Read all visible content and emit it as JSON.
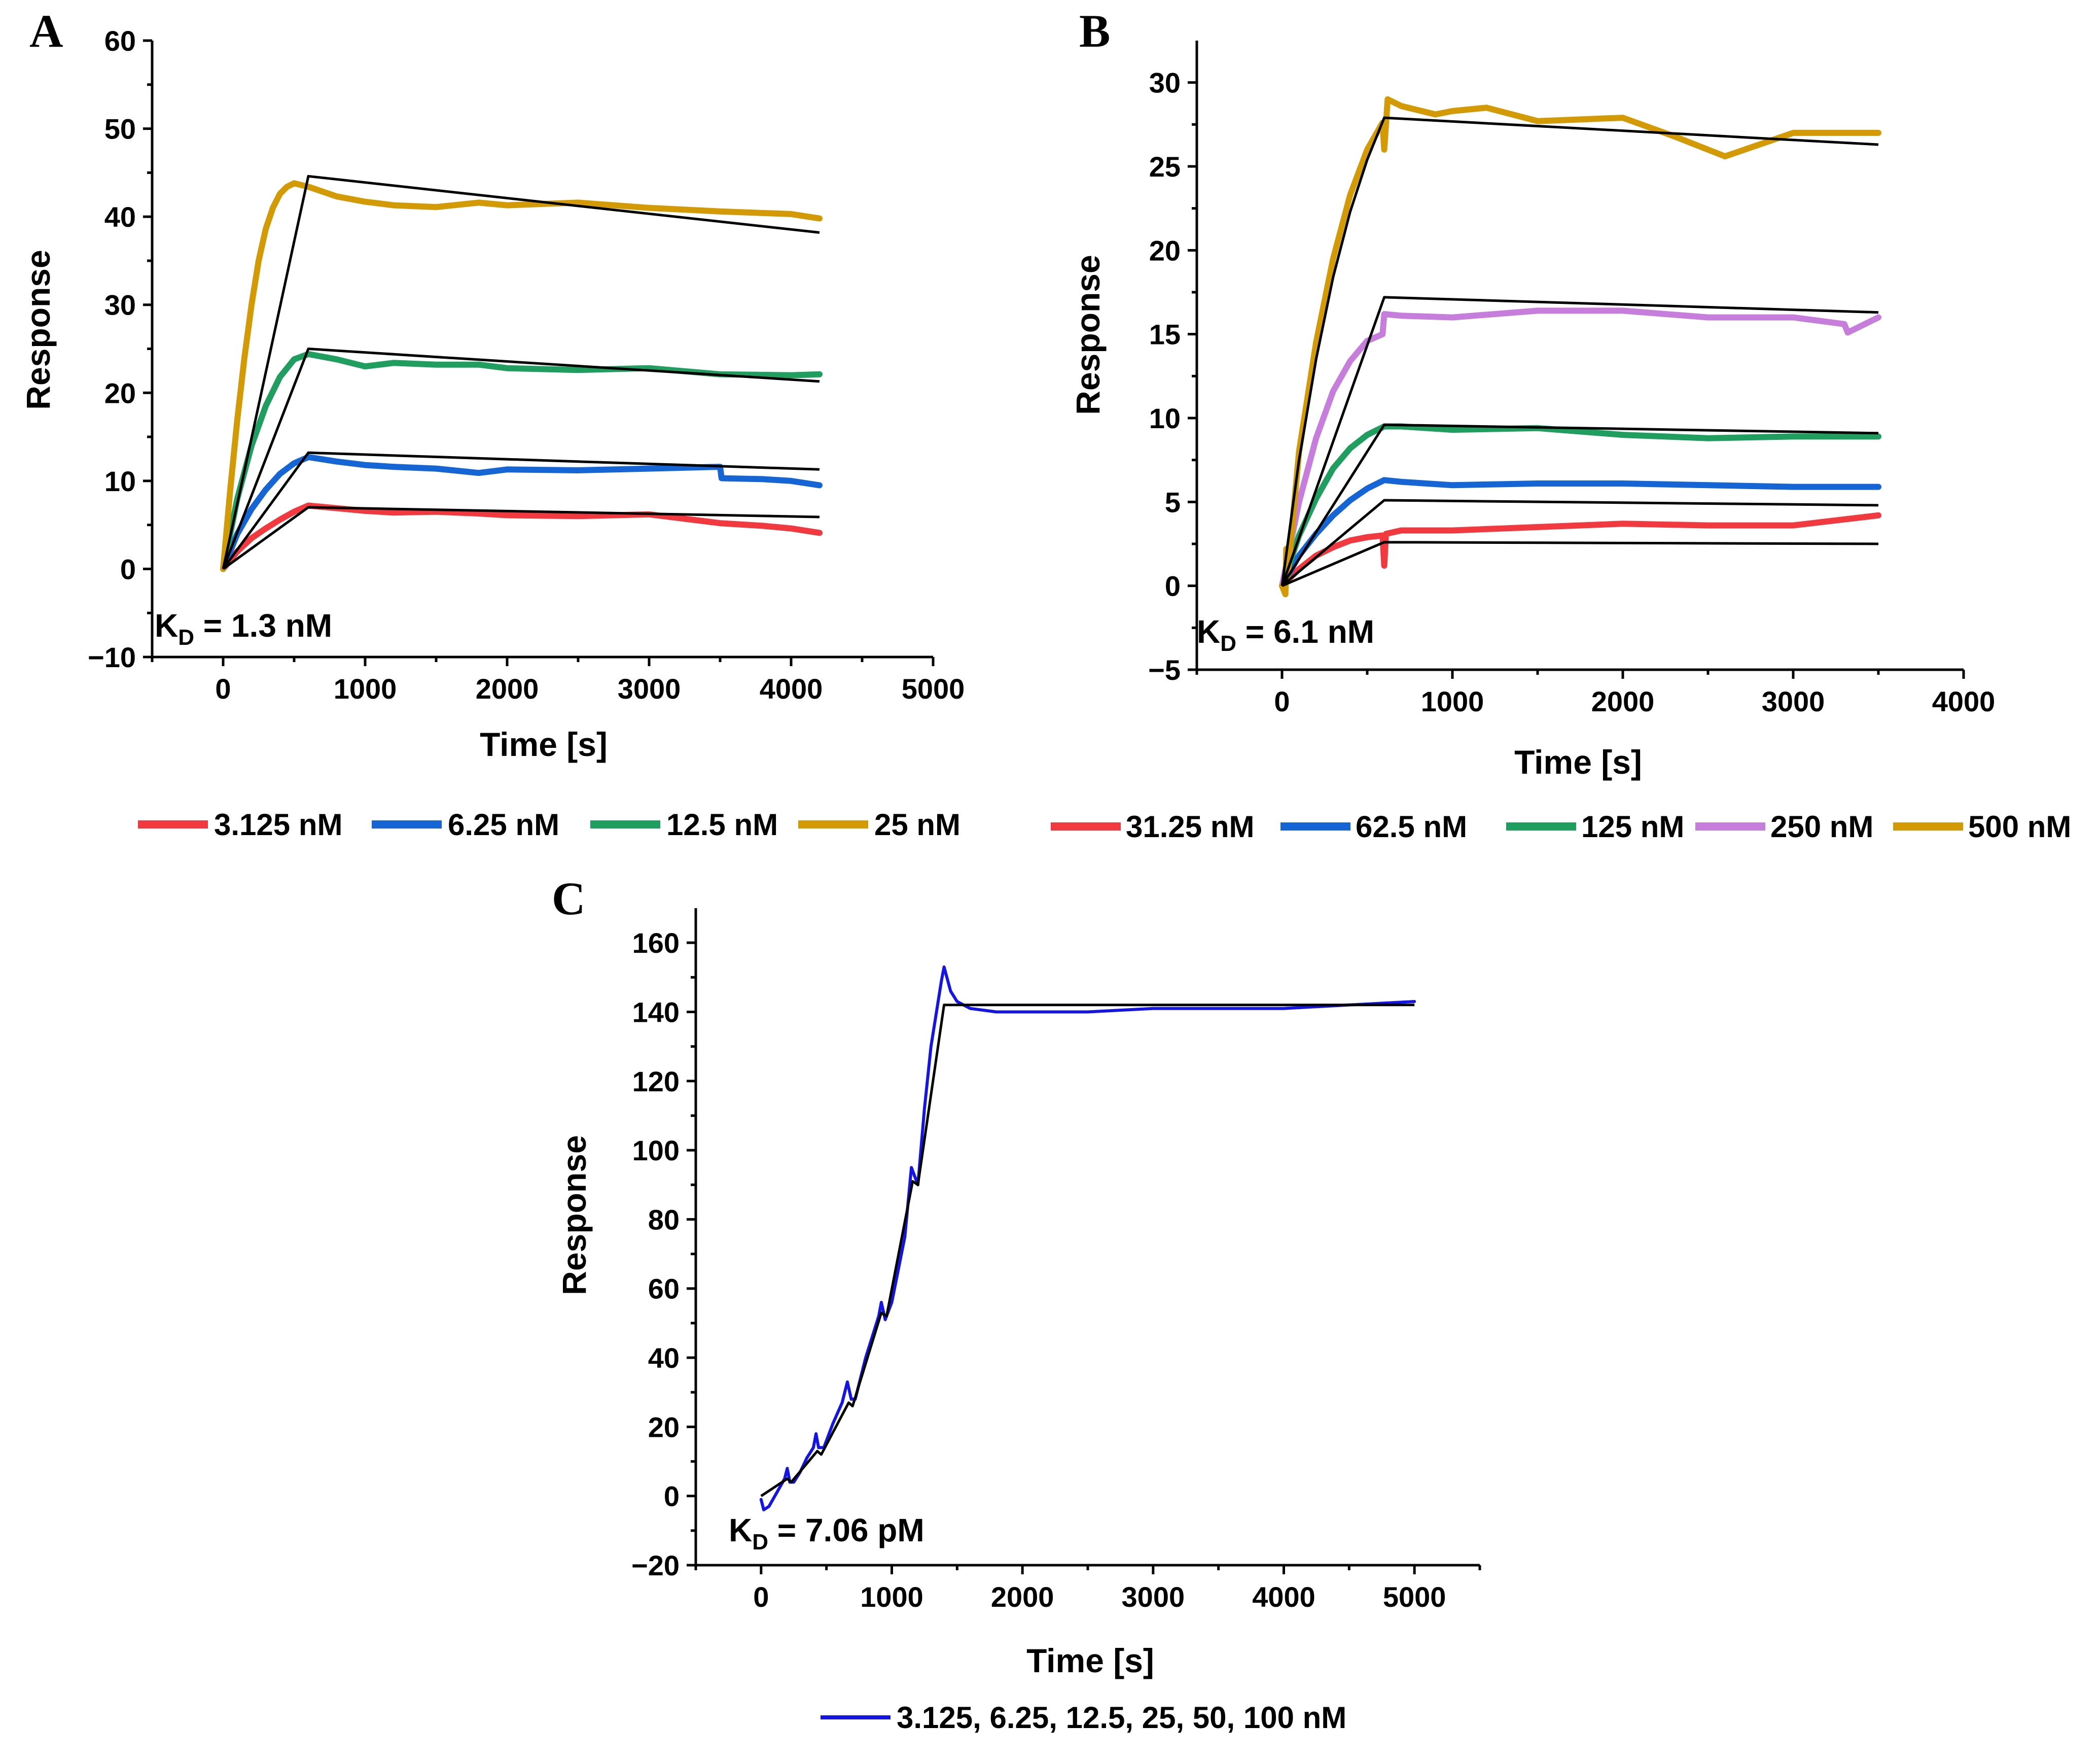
{
  "colors": {
    "red": "#f2393f",
    "blue": "#1565d6",
    "green": "#1f9e60",
    "gold": "#d49a06",
    "violet": "#c77ddb",
    "darkblue": "#1414e6",
    "fit": "#000000"
  },
  "chart_data": [
    {
      "panel": "A",
      "type": "line",
      "title": "",
      "xlabel": "Time [s]",
      "ylabel": "Response",
      "xlim": [
        -500,
        5000
      ],
      "ylim": [
        -10,
        60
      ],
      "xticks": [
        0,
        1000,
        2000,
        3000,
        4000,
        5000
      ],
      "yticks": [
        -10,
        0,
        10,
        20,
        30,
        40,
        50,
        60
      ],
      "grid": false,
      "legend_position": "bottom",
      "annotation": {
        "main": "K",
        "sub": "D",
        "rest": " = 1.3 nM"
      },
      "series": [
        {
          "name": "3.125 nM",
          "color": "red",
          "x": [
            0,
            100,
            200,
            300,
            400,
            500,
            600,
            800,
            1000,
            1200,
            1500,
            1800,
            2000,
            2500,
            3000,
            3500,
            3800,
            4000,
            4200
          ],
          "y": [
            0,
            2,
            3.5,
            4.6,
            5.6,
            6.5,
            7.2,
            6.9,
            6.6,
            6.4,
            6.5,
            6.3,
            6.1,
            6.0,
            6.2,
            5.2,
            4.9,
            4.6,
            4.1
          ]
        },
        {
          "name": "6.25 nM",
          "color": "blue",
          "x": [
            0,
            100,
            200,
            300,
            400,
            500,
            600,
            800,
            1000,
            1200,
            1500,
            1800,
            2000,
            2500,
            3000,
            3500,
            3510,
            3800,
            4000,
            4200
          ],
          "y": [
            0,
            4,
            6.8,
            9,
            10.8,
            12,
            12.7,
            12.2,
            11.8,
            11.6,
            11.4,
            10.9,
            11.3,
            11.2,
            11.4,
            11.6,
            10.3,
            10.2,
            10.0,
            9.5
          ]
        },
        {
          "name": "12.5 nM",
          "color": "green",
          "x": [
            0,
            100,
            200,
            300,
            400,
            500,
            600,
            800,
            1000,
            1200,
            1500,
            1800,
            2000,
            2500,
            3000,
            3500,
            4000,
            4200
          ],
          "y": [
            0,
            8,
            14,
            18.5,
            21.8,
            23.8,
            24.4,
            23.8,
            23.0,
            23.4,
            23.2,
            23.2,
            22.8,
            22.6,
            22.8,
            22.1,
            22.0,
            22.1
          ]
        },
        {
          "name": "25 nM",
          "color": "gold",
          "x": [
            0,
            50,
            100,
            150,
            200,
            250,
            300,
            350,
            400,
            450,
            500,
            600,
            800,
            1000,
            1200,
            1500,
            1800,
            2000,
            2500,
            3000,
            3500,
            4000,
            4200
          ],
          "y": [
            0,
            9,
            17,
            24,
            30,
            35,
            38.6,
            41,
            42.6,
            43.4,
            43.8,
            43.4,
            42.3,
            41.7,
            41.3,
            41.1,
            41.6,
            41.3,
            41.6,
            41.0,
            40.6,
            40.3,
            39.8
          ]
        }
      ],
      "fits": [
        {
          "x": [
            0,
            600,
            4200
          ],
          "y": [
            0,
            7.0,
            5.9
          ]
        },
        {
          "x": [
            0,
            600,
            4200
          ],
          "y": [
            0,
            13.2,
            11.3
          ]
        },
        {
          "x": [
            0,
            600,
            4200
          ],
          "y": [
            0,
            25.0,
            21.3
          ]
        },
        {
          "x": [
            0,
            600,
            4200
          ],
          "y": [
            0,
            44.6,
            38.2
          ]
        }
      ]
    },
    {
      "panel": "B",
      "type": "line",
      "title": "",
      "xlabel": "Time [s]",
      "ylabel": "Response",
      "xlim": [
        -500,
        4000
      ],
      "ylim": [
        -5,
        32.5
      ],
      "xticks": [
        0,
        1000,
        2000,
        3000,
        4000
      ],
      "yticks": [
        -5,
        0,
        5,
        10,
        15,
        20,
        25,
        30
      ],
      "grid": false,
      "legend_position": "bottom",
      "annotation": {
        "main": "K",
        "sub": "D",
        "rest": " = 6.1 nM"
      },
      "series": [
        {
          "name": "31.25 nM",
          "color": "red",
          "x": [
            0,
            100,
            200,
            300,
            400,
            500,
            590,
            600,
            610,
            700,
            1000,
            1500,
            2000,
            2500,
            3000,
            3500
          ],
          "y": [
            0,
            1.0,
            1.8,
            2.3,
            2.7,
            2.9,
            3.0,
            1.2,
            3.1,
            3.3,
            3.3,
            3.5,
            3.7,
            3.6,
            3.6,
            4.2
          ]
        },
        {
          "name": "62.5 nM",
          "color": "blue",
          "x": [
            0,
            100,
            200,
            300,
            400,
            500,
            600,
            700,
            1000,
            1500,
            2000,
            2500,
            3000,
            3500
          ],
          "y": [
            0,
            1.8,
            3.1,
            4.2,
            5.1,
            5.8,
            6.3,
            6.2,
            6.0,
            6.1,
            6.1,
            6.0,
            5.9,
            5.9
          ]
        },
        {
          "name": "125 nM",
          "color": "green",
          "x": [
            0,
            100,
            200,
            300,
            400,
            500,
            600,
            700,
            1000,
            1500,
            2000,
            2500,
            3000,
            3500
          ],
          "y": [
            0,
            3.0,
            5.2,
            7.0,
            8.2,
            9.0,
            9.5,
            9.5,
            9.3,
            9.4,
            9.0,
            8.8,
            8.9,
            8.9
          ]
        },
        {
          "name": "250 nM",
          "color": "violet",
          "x": [
            0,
            100,
            200,
            300,
            400,
            500,
            590,
            600,
            700,
            1000,
            1500,
            2000,
            2500,
            3000,
            3300,
            3320,
            3500
          ],
          "y": [
            0,
            5.0,
            8.8,
            11.6,
            13.4,
            14.6,
            15.0,
            16.2,
            16.1,
            16.0,
            16.4,
            16.4,
            16.0,
            16.0,
            15.6,
            15.1,
            16.0
          ]
        },
        {
          "name": "500 nM",
          "color": "gold",
          "x": [
            0,
            20,
            25,
            30,
            100,
            200,
            300,
            400,
            500,
            590,
            600,
            620,
            700,
            900,
            1000,
            1200,
            1500,
            2000,
            2300,
            2600,
            3000,
            3500
          ],
          "y": [
            0,
            -0.5,
            2.2,
            0.3,
            8.0,
            14.5,
            19.5,
            23.3,
            26.0,
            27.6,
            26.0,
            29.0,
            28.6,
            28.1,
            28.3,
            28.5,
            27.7,
            27.9,
            26.8,
            25.6,
            27.0,
            27.0
          ]
        }
      ],
      "fits": [
        {
          "x": [
            0,
            600,
            3500
          ],
          "y": [
            0,
            2.6,
            2.5
          ]
        },
        {
          "x": [
            0,
            600,
            3500
          ],
          "y": [
            0,
            5.1,
            4.8
          ]
        },
        {
          "x": [
            0,
            600,
            3500
          ],
          "y": [
            0,
            9.6,
            9.1
          ]
        },
        {
          "x": [
            0,
            600,
            3500
          ],
          "y": [
            0,
            17.2,
            16.3
          ]
        },
        {
          "x": [
            0,
            100,
            200,
            300,
            400,
            500,
            600,
            3500
          ],
          "y": [
            0,
            7.5,
            13.5,
            18.4,
            22.3,
            25.4,
            27.9,
            26.3
          ]
        }
      ]
    },
    {
      "panel": "C",
      "type": "line",
      "title": "",
      "xlabel": "Time [s]",
      "ylabel": "Response",
      "xlim": [
        -500,
        5500
      ],
      "ylim": [
        -20,
        170
      ],
      "xticks": [
        0,
        1000,
        2000,
        3000,
        4000,
        5000
      ],
      "yticks": [
        -20,
        0,
        20,
        40,
        60,
        80,
        100,
        120,
        140,
        160
      ],
      "grid": false,
      "legend_position": "bottom",
      "annotation": {
        "main": "K",
        "sub": "D",
        "rest": " = 7.06 pM"
      },
      "series": [
        {
          "name": "3.125, 6.25, 12.5, 25, 50, 100 nM",
          "color": "darkblue",
          "x": [
            0,
            20,
            60,
            120,
            180,
            200,
            220,
            250,
            300,
            350,
            400,
            420,
            440,
            480,
            550,
            620,
            660,
            690,
            720,
            800,
            900,
            920,
            950,
            1000,
            1100,
            1150,
            1170,
            1200,
            1250,
            1300,
            1380,
            1400,
            1450,
            1500,
            1600,
            1800,
            2000,
            2500,
            3000,
            3500,
            4000,
            4500,
            5000
          ],
          "y": [
            -1,
            -4,
            -3,
            1,
            5,
            8,
            4,
            4,
            7,
            11,
            14,
            18,
            14,
            14,
            21,
            27,
            33,
            28,
            28,
            40,
            52,
            56,
            51,
            56,
            75,
            95,
            93,
            90,
            112,
            130,
            149,
            153,
            146,
            143,
            141,
            140,
            140,
            140,
            141,
            141,
            141,
            142,
            143
          ]
        }
      ],
      "fits": [
        {
          "x": [
            0,
            200,
            230,
            430,
            460,
            670,
            700,
            920,
            960,
            1160,
            1200,
            1400,
            5000
          ],
          "y": [
            0,
            5,
            4,
            13,
            12,
            27,
            26,
            53,
            52,
            91,
            90,
            142,
            142
          ]
        }
      ]
    }
  ],
  "panels": {
    "A": {
      "letter": "A",
      "xlabel": "Time [s]",
      "ylabel": "Response",
      "kd_main": "K",
      "kd_sub": "D",
      "kd_rest": " = 1.3 nM",
      "legend": [
        {
          "label": "3.125 nM",
          "color": "#f2393f"
        },
        {
          "label": "6.25 nM",
          "color": "#1565d6"
        },
        {
          "label": "12.5 nM",
          "color": "#1f9e60"
        },
        {
          "label": "25 nM",
          "color": "#d49a06"
        }
      ]
    },
    "B": {
      "letter": "B",
      "xlabel": "Time [s]",
      "ylabel": "Response",
      "kd_main": "K",
      "kd_sub": "D",
      "kd_rest": " = 6.1 nM",
      "legend": [
        {
          "label": "31.25 nM",
          "color": "#f2393f"
        },
        {
          "label": "62.5 nM",
          "color": "#1565d6"
        },
        {
          "label": "125 nM",
          "color": "#1f9e60"
        },
        {
          "label": "250 nM",
          "color": "#c77ddb"
        },
        {
          "label": "500 nM",
          "color": "#d49a06"
        }
      ]
    },
    "C": {
      "letter": "C",
      "xlabel": "Time [s]",
      "ylabel": "Response",
      "kd_main": "K",
      "kd_sub": "D",
      "kd_rest": " = 7.06 pM",
      "legend": [
        {
          "label": "3.125, 6.25, 12.5, 25, 50, 100 nM",
          "color": "#1414e6"
        }
      ]
    }
  }
}
